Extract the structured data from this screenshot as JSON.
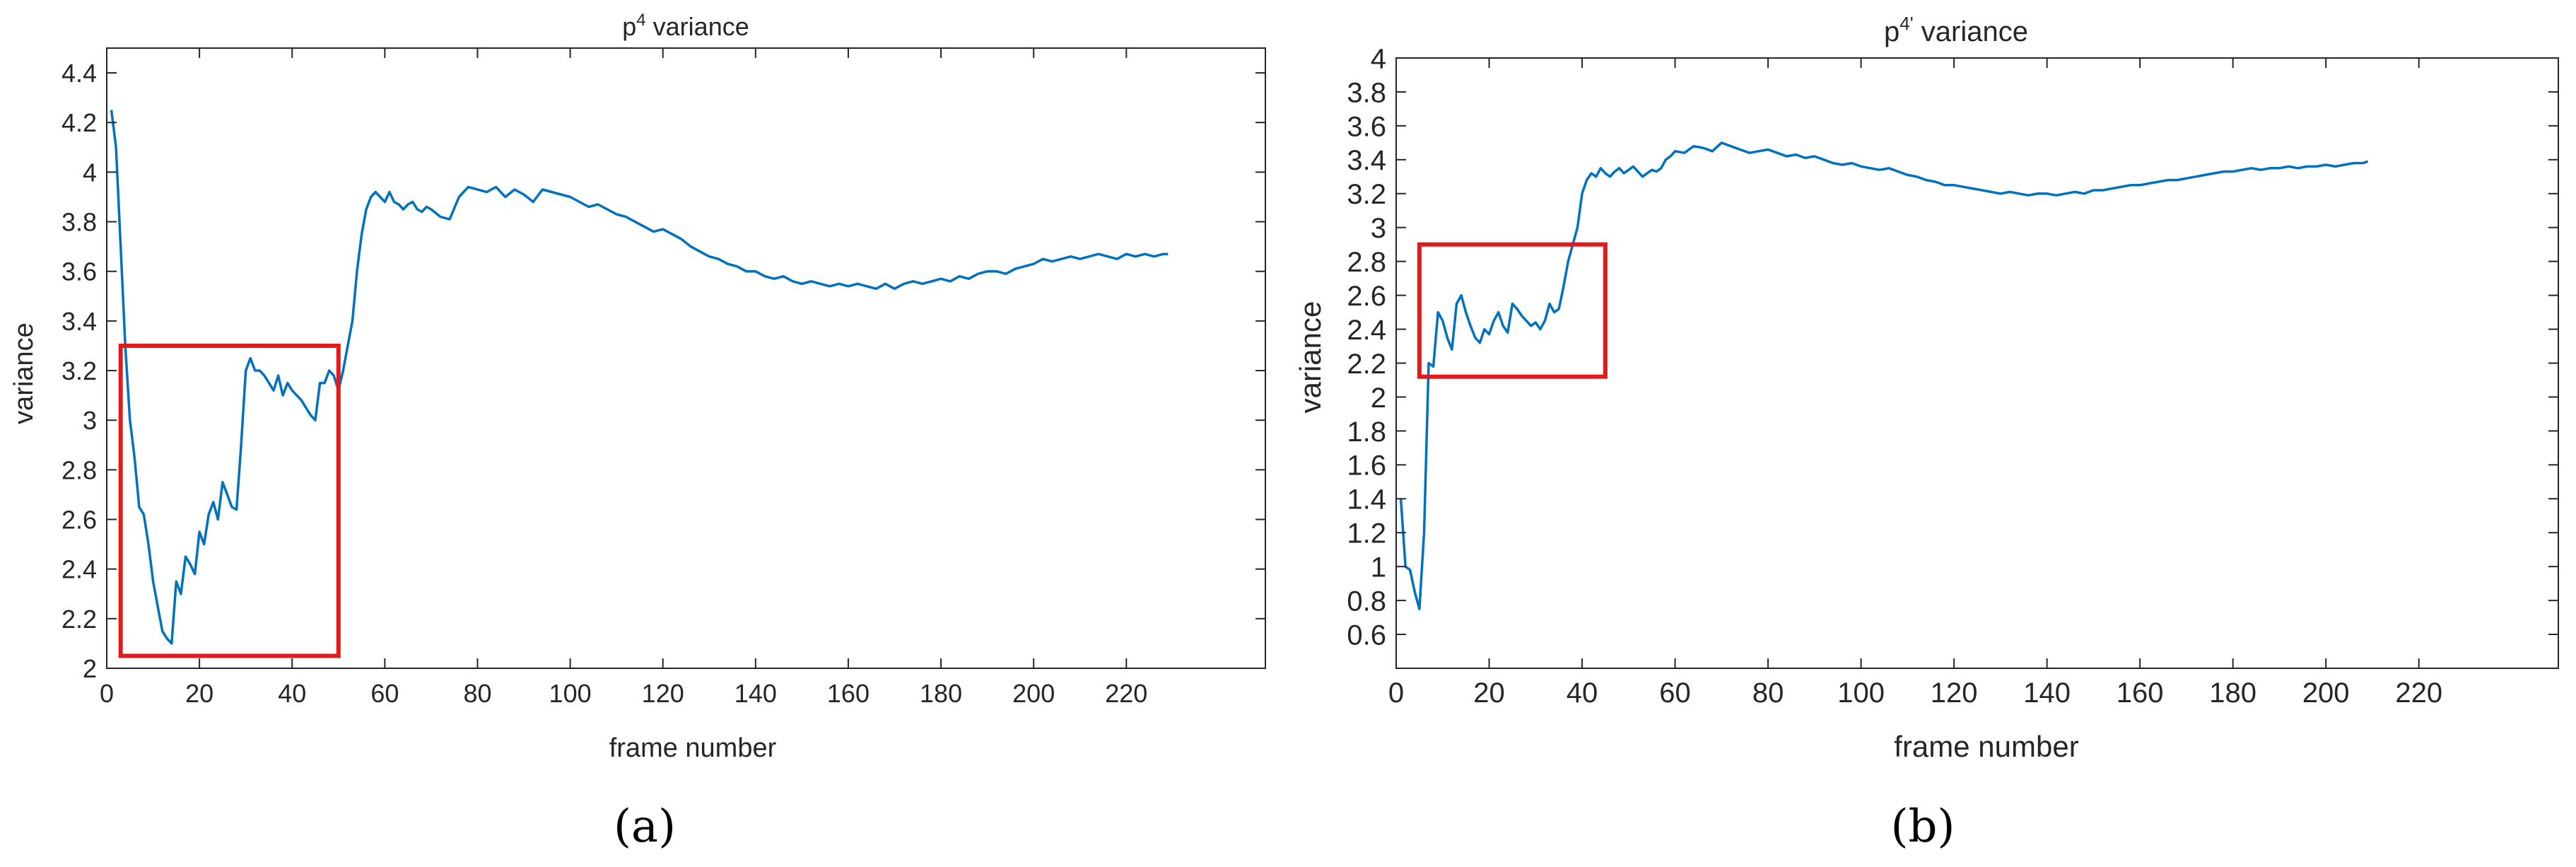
{
  "panels": [
    {
      "caption": "(a)"
    },
    {
      "caption": "(b)"
    }
  ],
  "chart_data": [
    {
      "type": "line",
      "title": "p",
      "title_superscript": "4",
      "title_suffix": " variance",
      "xlabel": "frame number",
      "ylabel": "variance",
      "xlim": [
        0,
        250
      ],
      "ylim": [
        2,
        4.5
      ],
      "xticks": [
        0,
        20,
        40,
        60,
        80,
        100,
        120,
        140,
        160,
        180,
        200,
        220
      ],
      "xtick_labels": [
        "0",
        "20",
        "40",
        "60",
        "80",
        "100",
        "120",
        "140",
        "160",
        "180",
        "200",
        "220"
      ],
      "yticks": [
        2,
        2.2,
        2.4,
        2.6,
        2.8,
        3,
        3.2,
        3.4,
        3.6,
        3.8,
        4,
        4.2,
        4.4
      ],
      "ytick_labels": [
        "2",
        "2.2",
        "2.4",
        "2.6",
        "2.8",
        "3",
        "3.2",
        "3.4",
        "3.6",
        "3.8",
        "4",
        "4.2",
        "4.4"
      ],
      "grid": false,
      "line_color": "#0072BD",
      "highlight_color": "#E31A1C",
      "highlight_box": {
        "x": [
          3,
          50
        ],
        "y": [
          2.05,
          3.3
        ]
      },
      "series": [
        {
          "x": [
            1,
            2,
            3,
            4,
            5,
            6,
            7,
            8,
            9,
            10,
            11,
            12,
            13,
            14,
            15,
            16,
            17,
            18,
            19,
            20,
            21,
            22,
            23,
            24,
            25,
            26,
            27,
            28,
            29,
            30,
            31,
            32,
            33,
            34,
            35,
            36,
            37,
            38,
            39,
            40,
            41,
            42,
            43,
            44,
            45,
            46,
            47,
            48,
            49,
            50,
            51,
            52,
            53,
            54,
            55,
            56,
            57,
            58,
            59,
            60,
            61,
            62,
            63,
            64,
            65,
            66,
            67,
            68,
            69,
            70,
            72,
            74,
            76,
            78,
            80,
            82,
            84,
            86,
            88,
            90,
            92,
            94,
            96,
            98,
            100,
            102,
            104,
            106,
            108,
            110,
            112,
            114,
            116,
            118,
            120,
            122,
            124,
            126,
            128,
            130,
            132,
            134,
            136,
            138,
            140,
            142,
            144,
            146,
            148,
            150,
            152,
            154,
            156,
            158,
            160,
            162,
            164,
            166,
            168,
            170,
            172,
            174,
            176,
            178,
            180,
            182,
            184,
            186,
            188,
            190,
            192,
            194,
            196,
            198,
            200,
            202,
            204,
            206,
            208,
            210,
            212,
            214,
            216,
            218,
            220,
            222,
            224,
            226,
            228,
            229
          ],
          "values": [
            4.25,
            4.1,
            3.7,
            3.3,
            3.0,
            2.85,
            2.65,
            2.62,
            2.5,
            2.35,
            2.25,
            2.15,
            2.12,
            2.1,
            2.35,
            2.3,
            2.45,
            2.42,
            2.38,
            2.55,
            2.5,
            2.62,
            2.67,
            2.6,
            2.75,
            2.7,
            2.65,
            2.64,
            2.9,
            3.2,
            3.25,
            3.2,
            3.2,
            3.18,
            3.15,
            3.12,
            3.18,
            3.1,
            3.15,
            3.12,
            3.1,
            3.08,
            3.05,
            3.02,
            3.0,
            3.15,
            3.15,
            3.2,
            3.18,
            3.12,
            3.2,
            3.3,
            3.4,
            3.6,
            3.75,
            3.85,
            3.9,
            3.92,
            3.9,
            3.88,
            3.92,
            3.88,
            3.87,
            3.85,
            3.87,
            3.88,
            3.85,
            3.84,
            3.86,
            3.85,
            3.82,
            3.81,
            3.9,
            3.94,
            3.93,
            3.92,
            3.94,
            3.9,
            3.93,
            3.91,
            3.88,
            3.93,
            3.92,
            3.91,
            3.9,
            3.88,
            3.86,
            3.87,
            3.85,
            3.83,
            3.82,
            3.8,
            3.78,
            3.76,
            3.77,
            3.75,
            3.73,
            3.7,
            3.68,
            3.66,
            3.65,
            3.63,
            3.62,
            3.6,
            3.6,
            3.58,
            3.57,
            3.58,
            3.56,
            3.55,
            3.56,
            3.55,
            3.54,
            3.55,
            3.54,
            3.55,
            3.54,
            3.53,
            3.55,
            3.53,
            3.55,
            3.56,
            3.55,
            3.56,
            3.57,
            3.56,
            3.58,
            3.57,
            3.59,
            3.6,
            3.6,
            3.59,
            3.61,
            3.62,
            3.63,
            3.65,
            3.64,
            3.65,
            3.66,
            3.65,
            3.66,
            3.67,
            3.66,
            3.65,
            3.67,
            3.66,
            3.67,
            3.66,
            3.67,
            3.67
          ]
        }
      ]
    },
    {
      "type": "line",
      "title": "p",
      "title_superscript": "4'",
      "title_suffix": " variance",
      "xlabel": "frame number",
      "ylabel": "variance",
      "xlim": [
        0,
        250
      ],
      "ylim": [
        0.4,
        4
      ],
      "xticks": [
        0,
        20,
        40,
        60,
        80,
        100,
        120,
        140,
        160,
        180,
        200,
        220
      ],
      "xtick_labels": [
        "0",
        "20",
        "40",
        "60",
        "80",
        "100",
        "120",
        "140",
        "160",
        "180",
        "200",
        "220"
      ],
      "yticks": [
        0.6,
        0.8,
        1,
        1.2,
        1.4,
        1.6,
        1.8,
        2,
        2.2,
        2.4,
        2.6,
        2.8,
        3,
        3.2,
        3.4,
        3.6,
        3.8,
        4
      ],
      "ytick_labels": [
        "0.6",
        "0.8",
        "1",
        "1.2",
        "1.4",
        "1.6",
        "1.8",
        "2",
        "2.2",
        "2.4",
        "2.6",
        "2.8",
        "3",
        "3.2",
        "3.4",
        "3.6",
        "3.8",
        "4"
      ],
      "grid": false,
      "line_color": "#0072BD",
      "highlight_color": "#E31A1C",
      "highlight_box": {
        "x": [
          5,
          45
        ],
        "y": [
          2.12,
          2.9
        ]
      },
      "series": [
        {
          "x": [
            1,
            2,
            3,
            4,
            5,
            6,
            7,
            8,
            9,
            10,
            11,
            12,
            13,
            14,
            15,
            16,
            17,
            18,
            19,
            20,
            21,
            22,
            23,
            24,
            25,
            26,
            27,
            28,
            29,
            30,
            31,
            32,
            33,
            34,
            35,
            36,
            37,
            38,
            39,
            40,
            41,
            42,
            43,
            44,
            45,
            46,
            47,
            48,
            49,
            50,
            51,
            52,
            53,
            54,
            55,
            56,
            57,
            58,
            59,
            60,
            62,
            64,
            66,
            68,
            70,
            72,
            74,
            76,
            78,
            80,
            82,
            84,
            86,
            88,
            90,
            92,
            94,
            96,
            98,
            100,
            102,
            104,
            106,
            108,
            110,
            112,
            114,
            116,
            118,
            120,
            122,
            124,
            126,
            128,
            130,
            132,
            134,
            136,
            138,
            140,
            142,
            144,
            146,
            148,
            150,
            152,
            154,
            156,
            158,
            160,
            162,
            164,
            166,
            168,
            170,
            172,
            174,
            176,
            178,
            180,
            182,
            184,
            186,
            188,
            190,
            192,
            194,
            196,
            198,
            200,
            202,
            204,
            206,
            208,
            209
          ],
          "values": [
            1.4,
            1.0,
            0.98,
            0.85,
            0.75,
            1.2,
            2.2,
            2.18,
            2.5,
            2.45,
            2.35,
            2.28,
            2.55,
            2.6,
            2.5,
            2.42,
            2.35,
            2.32,
            2.4,
            2.37,
            2.45,
            2.5,
            2.42,
            2.38,
            2.55,
            2.52,
            2.48,
            2.45,
            2.42,
            2.44,
            2.4,
            2.45,
            2.55,
            2.5,
            2.52,
            2.65,
            2.8,
            2.9,
            3.0,
            3.2,
            3.28,
            3.32,
            3.3,
            3.35,
            3.32,
            3.3,
            3.33,
            3.35,
            3.32,
            3.34,
            3.36,
            3.33,
            3.3,
            3.32,
            3.34,
            3.33,
            3.35,
            3.4,
            3.42,
            3.45,
            3.44,
            3.48,
            3.47,
            3.45,
            3.5,
            3.48,
            3.46,
            3.44,
            3.45,
            3.46,
            3.44,
            3.42,
            3.43,
            3.41,
            3.42,
            3.4,
            3.38,
            3.37,
            3.38,
            3.36,
            3.35,
            3.34,
            3.35,
            3.33,
            3.31,
            3.3,
            3.28,
            3.27,
            3.25,
            3.25,
            3.24,
            3.23,
            3.22,
            3.21,
            3.2,
            3.21,
            3.2,
            3.19,
            3.2,
            3.2,
            3.19,
            3.2,
            3.21,
            3.2,
            3.22,
            3.22,
            3.23,
            3.24,
            3.25,
            3.25,
            3.26,
            3.27,
            3.28,
            3.28,
            3.29,
            3.3,
            3.31,
            3.32,
            3.33,
            3.33,
            3.34,
            3.35,
            3.34,
            3.35,
            3.35,
            3.36,
            3.35,
            3.36,
            3.36,
            3.37,
            3.36,
            3.37,
            3.38,
            3.38,
            3.39
          ]
        }
      ]
    }
  ]
}
